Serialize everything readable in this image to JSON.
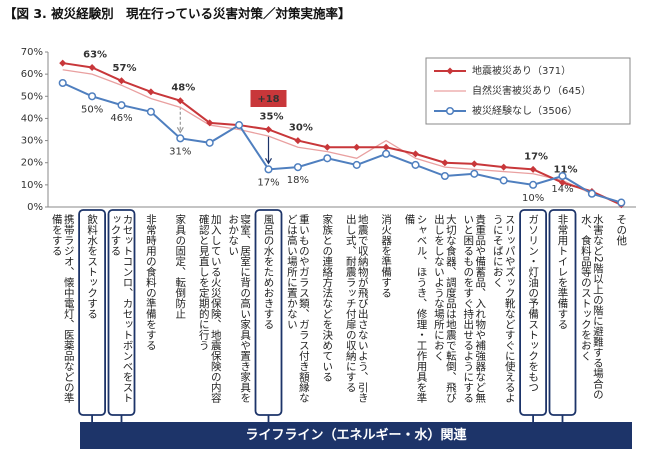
{
  "chart_data": {
    "type": "line",
    "title": "【図 3. 被災経験別　現在行っている災害対策／対策実施率】",
    "categories": [
      "携帯ラジオ、懐中電灯、医薬品などの準備をする",
      "飲料水をストックする",
      "カセットコンロ、カセットボンベをストックする",
      "非常時用の食料の準備をする",
      "家具の固定、転倒防止",
      "加入している火災保険、地震保険の内容確認と見直しを定期的に行う",
      "寝室、居室に背の高い家具や置き家具をおかない",
      "風呂の水をためおきする",
      "重いものやガラス類、ガラス付き額縁などは高い場所に置かない",
      "家族との連絡方法などを決めている",
      "地震で収納物が飛び出さないよう、引き出し式、耐震ラッチ付扉の収納にする",
      "消火器を準備する",
      "シャベル、ほうき、修理・工作用具を準備",
      "大切な食器、調度品は地震で転倒、飛び出しをしないような場所におく",
      "貴重品や備蓄品、入れ物や補強器など無いと困るものをすぐ持出せるようにする",
      "スリッパやズック靴などすぐに使えるようにそばにおく",
      "ガソリン・灯油の予備ストックをもつ",
      "非常用トイレを準備する",
      "水害など2階以上の階に避難する場合の水、食料品等のストックをおく",
      "その他"
    ],
    "series": [
      {
        "name": "地震被災あり（371）",
        "color": "#c8373a",
        "marker": "diamond",
        "values": [
          65,
          63,
          57,
          52,
          48,
          38,
          37,
          35,
          30,
          27,
          27,
          27,
          24,
          20,
          19.5,
          18,
          17,
          11,
          7,
          1
        ],
        "value_labels": [
          null,
          "63%",
          "57%",
          null,
          "48%",
          null,
          null,
          "35%",
          "30%",
          null,
          null,
          null,
          null,
          null,
          null,
          null,
          "17%",
          "11%",
          null,
          null
        ]
      },
      {
        "name": "自然災害被災あり（645）",
        "color": "#e9a0a0",
        "marker": "none",
        "values": [
          62,
          60,
          55,
          49,
          45,
          37,
          35,
          32,
          27,
          25,
          22,
          30,
          22,
          18,
          17,
          16,
          15,
          12,
          6,
          2
        ],
        "value_labels": [
          null,
          null,
          null,
          null,
          null,
          null,
          null,
          null,
          null,
          null,
          null,
          null,
          null,
          null,
          null,
          null,
          null,
          null,
          null,
          null
        ]
      },
      {
        "name": "被災経験なし（3506）",
        "color": "#4f7fbf",
        "marker": "circle",
        "values": [
          56,
          50,
          46,
          43,
          31,
          29,
          37,
          17,
          18,
          22,
          19,
          24,
          19,
          14,
          15,
          12,
          10,
          14,
          6,
          2
        ],
        "value_labels": [
          null,
          "50%",
          "46%",
          null,
          "31%",
          null,
          null,
          "17%",
          "18%",
          null,
          null,
          null,
          null,
          null,
          null,
          null,
          "10%",
          "14%",
          null,
          null
        ]
      }
    ],
    "ylim": [
      0,
      70
    ],
    "yticks": [
      {
        "value": 0,
        "label": "0%"
      },
      {
        "value": 10,
        "label": "10%"
      },
      {
        "value": 20,
        "label": "20%"
      },
      {
        "value": 30,
        "label": "30%"
      },
      {
        "value": 40,
        "label": "40%"
      },
      {
        "value": 50,
        "label": "50%"
      },
      {
        "value": 60,
        "label": "60%"
      },
      {
        "value": 70,
        "label": "70%"
      }
    ],
    "grid": false,
    "annotation": "+18",
    "group_label": "ライフライン（エネルギー・水）関連"
  }
}
